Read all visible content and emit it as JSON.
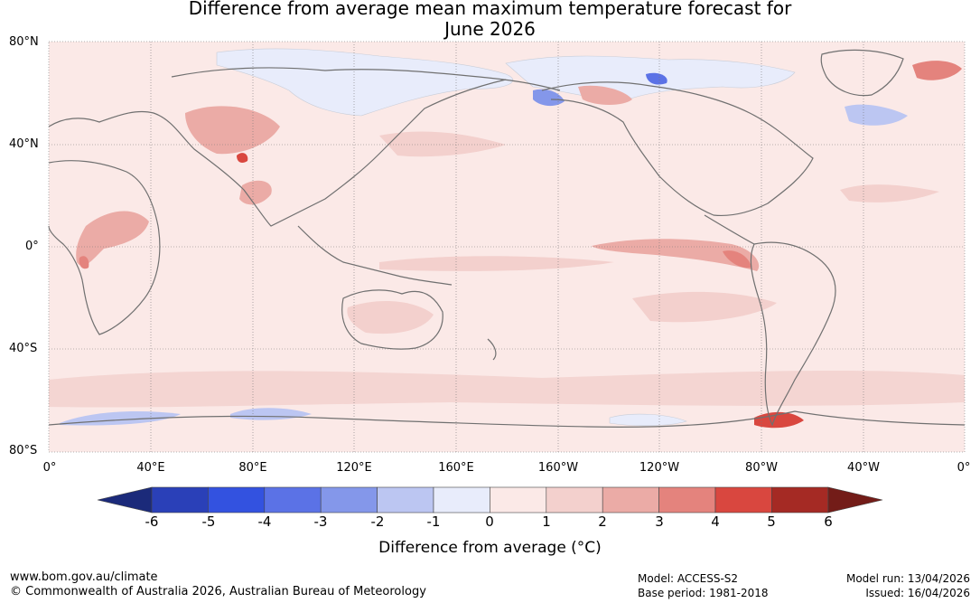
{
  "title_line1": "Difference from average mean maximum temperature forecast for",
  "title_line2": "June 2026",
  "latitude_labels": [
    "80°N",
    "40°N",
    "0°",
    "40°S",
    "80°S"
  ],
  "longitude_labels": [
    "0°",
    "40°E",
    "80°E",
    "120°E",
    "160°E",
    "160°W",
    "120°W",
    "80°W",
    "40°W",
    "0°"
  ],
  "colorbar": {
    "ticks": [
      "-6",
      "-5",
      "-4",
      "-3",
      "-2",
      "-1",
      "0",
      "1",
      "2",
      "3",
      "4",
      "5",
      "6"
    ],
    "colors": [
      "#1b2a7a",
      "#2a40b8",
      "#3352e0",
      "#5b72e6",
      "#8497ea",
      "#bcc6f2",
      "#e8ecfb",
      "#fbe9e7",
      "#f3d0cd",
      "#ebaba6",
      "#e4837d",
      "#d9473f",
      "#a52a24",
      "#731c18"
    ],
    "title": "Difference from average (°C)"
  },
  "footer": {
    "website": "www.bom.gov.au/climate",
    "copyright": "© Commonwealth of Australia 2026, Australian Bureau of Meteorology",
    "model": "Model: ACCESS-S2",
    "base_period": "Base period: 1981-2018",
    "model_run": "Model run: 13/04/2026",
    "issued": "Issued: 16/04/2026"
  }
}
